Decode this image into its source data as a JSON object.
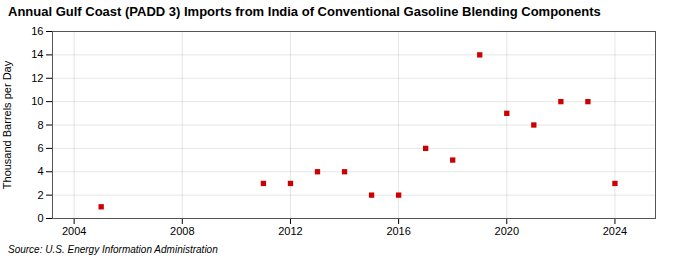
{
  "chart_data": {
    "type": "scatter",
    "title": "Annual Gulf Coast (PADD 3) Imports from India of Conventional Gasoline Blending Components",
    "ylabel": "Thousand Barrels per Day",
    "annotation": "Source: U.S. Energy Information Administration",
    "x": [
      2005,
      2011,
      2012,
      2013,
      2014,
      2015,
      2016,
      2017,
      2018,
      2019,
      2020,
      2021,
      2022,
      2023,
      2024
    ],
    "values": [
      1,
      3,
      3,
      4,
      4,
      2,
      2,
      6,
      5,
      14,
      9,
      8,
      10,
      10,
      3
    ],
    "color": "#cc0000",
    "marker": "square",
    "xlim": [
      2003.2,
      2025.5
    ],
    "ylim": [
      0,
      16
    ],
    "xticks": [
      2004,
      2008,
      2012,
      2016,
      2020,
      2024
    ],
    "yticks": [
      0,
      2,
      4,
      6,
      8,
      10,
      12,
      14,
      16
    ],
    "grid": true
  }
}
